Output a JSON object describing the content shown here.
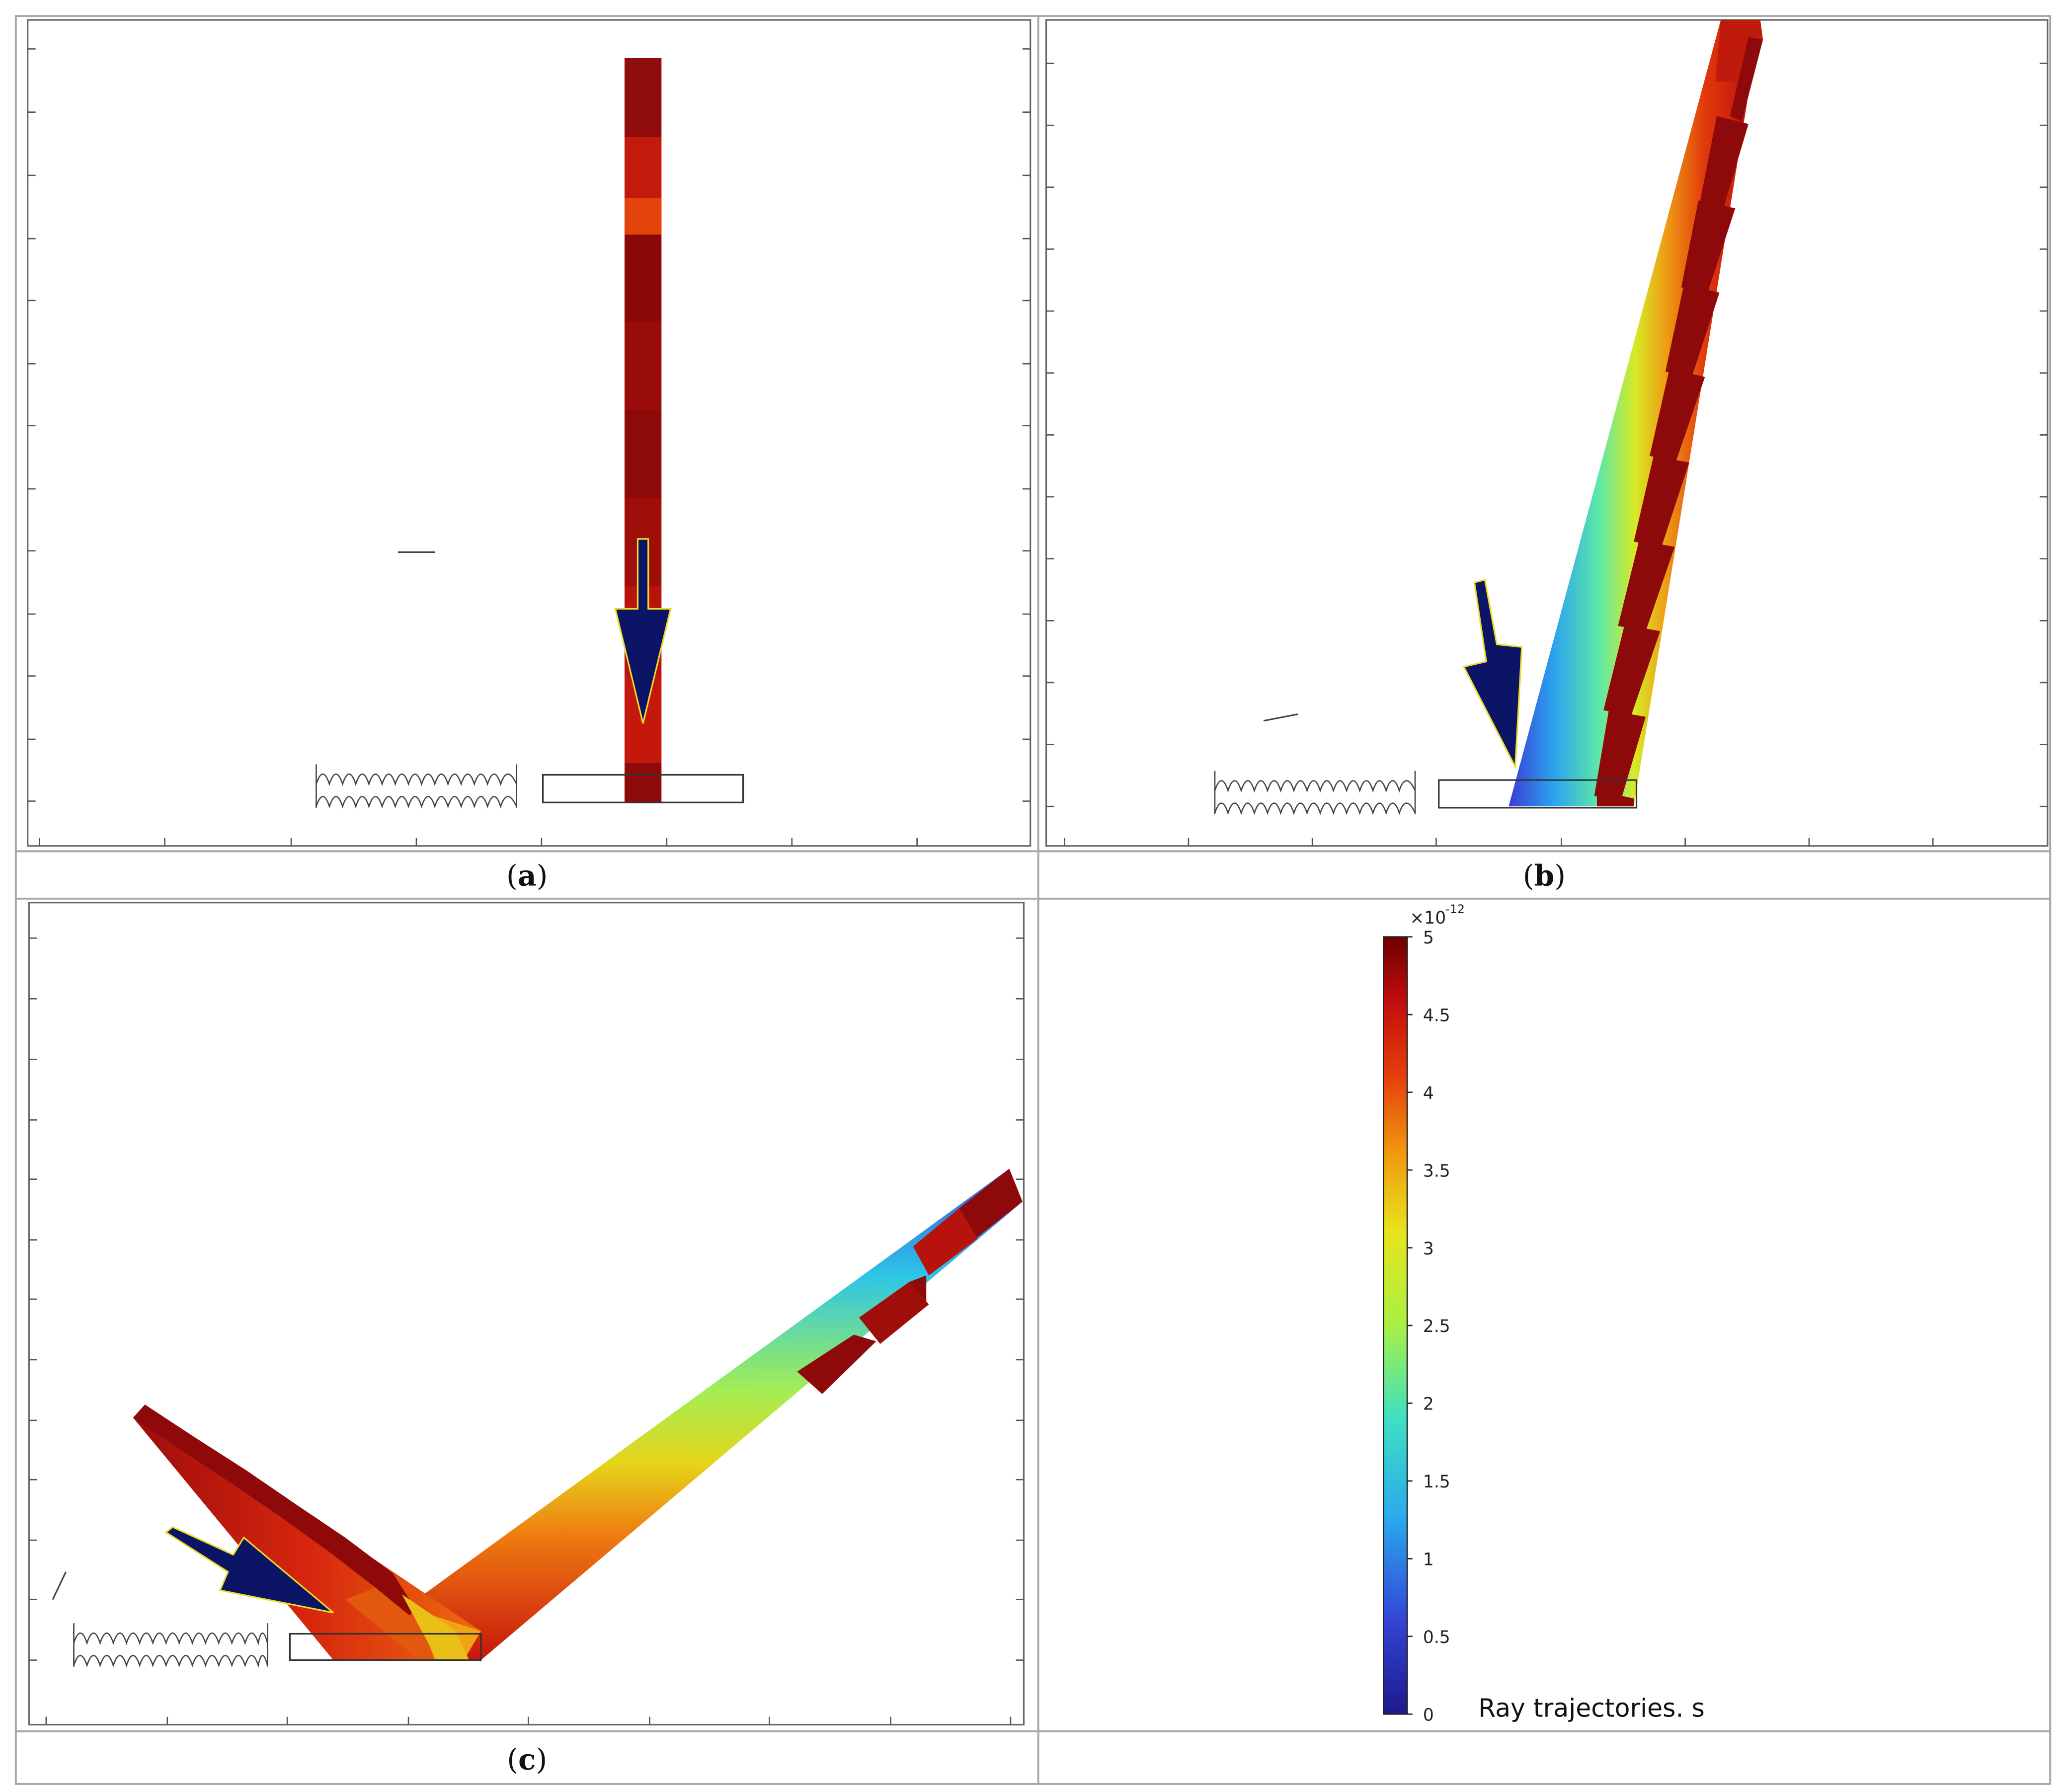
{
  "figure": {
    "panels": [
      {
        "id": "a",
        "letter": "a",
        "open": "(",
        "close": ")"
      },
      {
        "id": "b",
        "letter": "b",
        "open": "(",
        "close": ")"
      },
      {
        "id": "c",
        "letter": "c",
        "open": "(",
        "close": ")"
      }
    ],
    "colorbar": {
      "exponent_prefix": "×10",
      "exponent_power": "-12",
      "ticks": [
        "0",
        "0.5",
        "1",
        "1.5",
        "2",
        "2.5",
        "3",
        "3.5",
        "4",
        "4.5",
        "5"
      ],
      "title": "Ray trajectories. s",
      "colors": [
        "#2a1f9c",
        "#3d5ee8",
        "#32c4ea",
        "#7af080",
        "#c9ee2e",
        "#e8c014",
        "#ef6a0c",
        "#d71d0c",
        "#7a0000"
      ]
    },
    "arrow_colors": {
      "fill": "#0c1466",
      "outline": "#e8dd2a"
    }
  }
}
